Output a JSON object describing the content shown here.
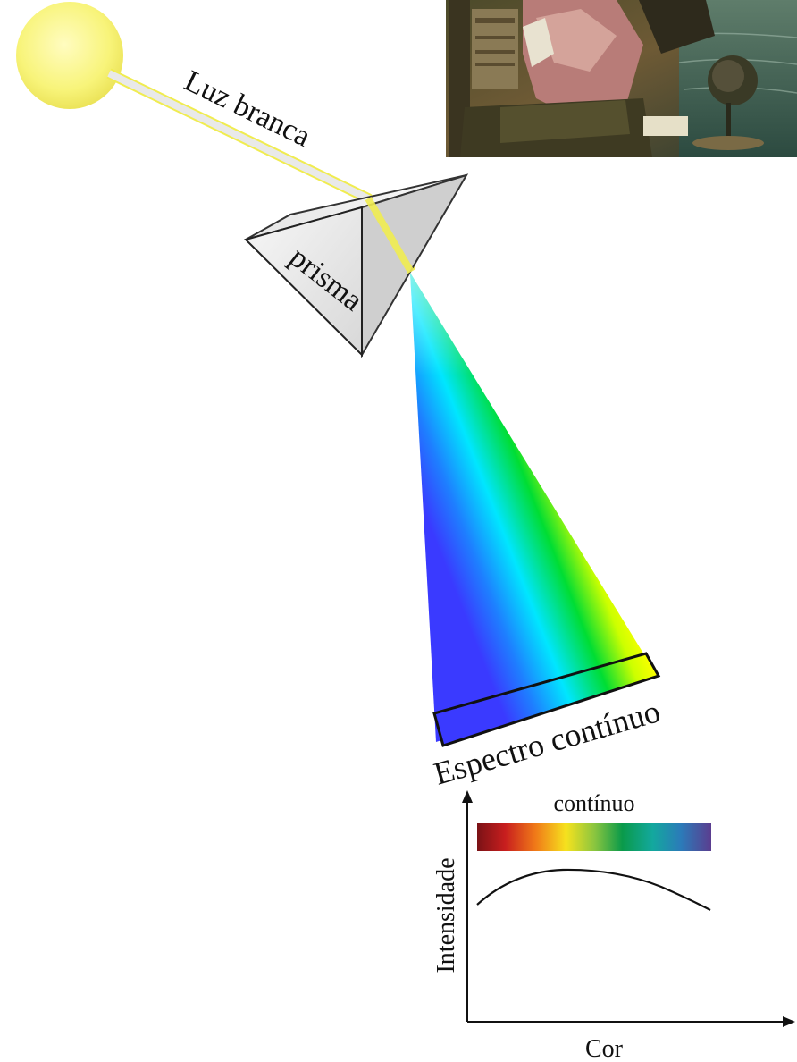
{
  "labels": {
    "white_light": "Luz branca",
    "prism": "prisma",
    "spectrum": "Espectro contínuo"
  },
  "graph": {
    "band_label": "contínuo",
    "y_axis_label": "Intensidade",
    "x_axis_label": "Cor",
    "band_colors": [
      "#7a1216",
      "#c81e1e",
      "#f07a18",
      "#f6e21e",
      "#8cc63f",
      "#0a9a4a",
      "#13a89e",
      "#2b7bb9",
      "#5b3d8f"
    ],
    "curve_shape": "broad continuous hump peaking at yellow-green, lower toward red and violet"
  },
  "spectrum_colors": [
    "#ff0000",
    "#ff7f00",
    "#ffff00",
    "#00cc00",
    "#00ffff",
    "#1e90ff",
    "#2a2aff"
  ],
  "sun_color": "#f8f47a",
  "beam_color": "#f2ee55",
  "painting": {
    "description_icon": "portrait-painting-icon"
  }
}
